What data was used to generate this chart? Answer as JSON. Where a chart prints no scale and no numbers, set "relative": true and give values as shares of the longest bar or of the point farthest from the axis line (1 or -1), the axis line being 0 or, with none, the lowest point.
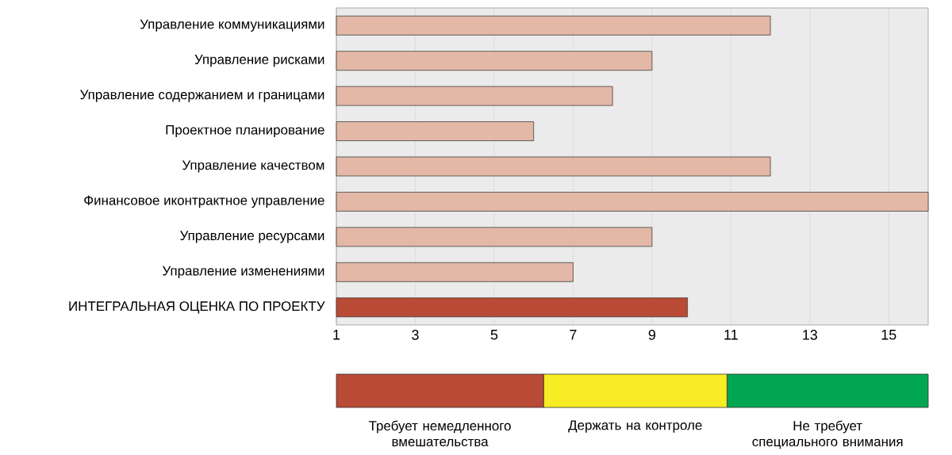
{
  "chart_data": [
    {
      "type": "bar",
      "orientation": "horizontal",
      "categories": [
        "Управление коммуникациями",
        "Управление рисками",
        "Управление содержанием и границами",
        "Проектное планирование",
        "Управление качеством",
        "Финансовое иконтрактное управление",
        "Управление ресурсами",
        "Управление изменениями",
        "ИНТЕГРАЛЬНАЯ ОЦЕНКА ПО ПРОЕКТУ"
      ],
      "values": [
        12,
        9,
        8,
        6,
        12,
        16,
        9,
        7,
        9.9
      ],
      "colors": [
        "#e3b8a6",
        "#e3b8a6",
        "#e3b8a6",
        "#e3b8a6",
        "#e3b8a6",
        "#e3b8a6",
        "#e3b8a6",
        "#e3b8a6",
        "#b94a35"
      ],
      "xlim": [
        1,
        16
      ],
      "xticks": [
        1,
        3,
        5,
        7,
        9,
        11,
        13,
        15
      ],
      "grid": "x"
    },
    {
      "type": "bar",
      "orientation": "horizontal",
      "stacked": true,
      "relative": true,
      "categories": [
        null
      ],
      "series": [
        {
          "name": "Требует немедленного вмешательства",
          "color": "#b94a35",
          "values": [
            0.35
          ]
        },
        {
          "name": "Держать на контроле",
          "color": "#f8ec24",
          "values": [
            0.31
          ]
        },
        {
          "name": "Не требует специального внимания",
          "color": "#00a651",
          "values": [
            0.34
          ]
        }
      ]
    }
  ]
}
